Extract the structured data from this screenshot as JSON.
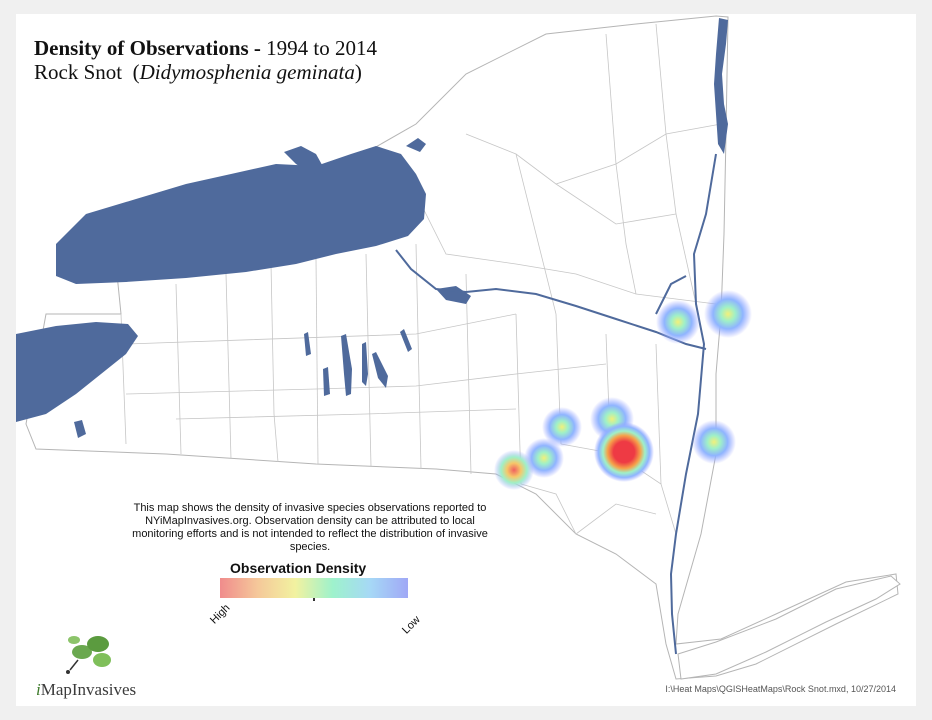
{
  "title": {
    "bold": "Density of Observations -",
    "years": " 1994 to 2014",
    "common_name": "Rock Snot",
    "scientific_name": "Didymosphenia geminata"
  },
  "description": "This map shows the density of invasive species observations reported to NYiMapInvasives.org. Observation density can be attributed to local monitoring efforts and is not intended to reflect the distribution of invasive species.",
  "legend": {
    "title": "Observation Density",
    "high": "High",
    "low": "Low",
    "colors": [
      "#f08c8c",
      "#f5c89a",
      "#f2f2a0",
      "#9ef2cc",
      "#a6d8f6",
      "#a0a8f6"
    ]
  },
  "logo": {
    "prefix": "i",
    "text": "MapInvasives",
    "icon": "leaf-icon"
  },
  "file_note": "I:\\Heat Maps\\QGISHeatMaps\\Rock Snot.mxd, 10/27/2014",
  "colors": {
    "water": "#4f6a9c",
    "county_line": "#bdbdbd",
    "hot": "#ee3a44"
  }
}
